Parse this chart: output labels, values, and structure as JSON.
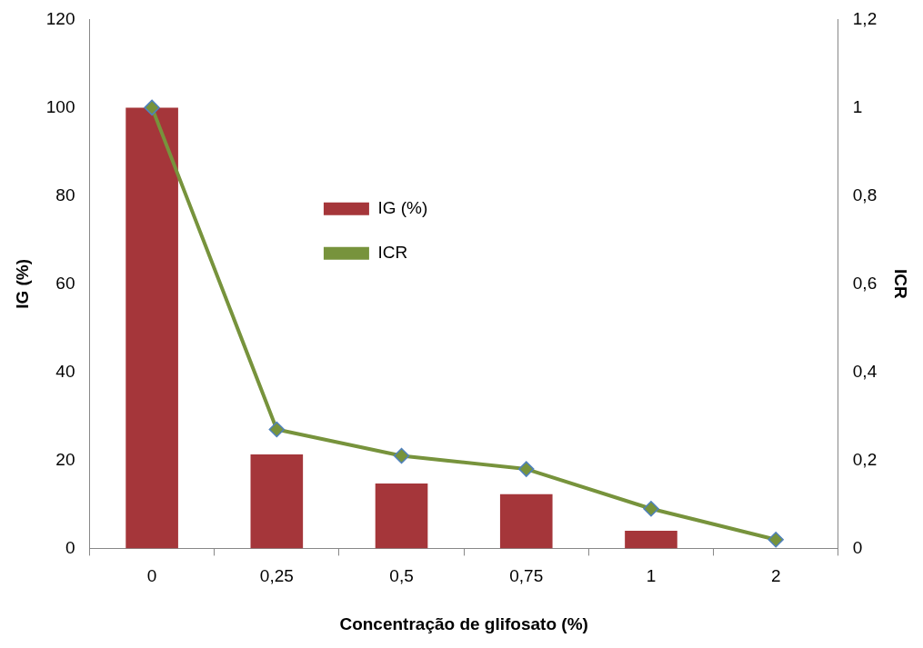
{
  "chart_data": {
    "type": "bar",
    "xlabel": "Concentração de glifosato (%)",
    "ylabel": "IG (%)",
    "y2label": "ICR",
    "categories": [
      "0",
      "0,25",
      "0,5",
      "0,75",
      "1",
      "2"
    ],
    "series": [
      {
        "name": "IG (%)",
        "color": "#a5363a",
        "values": [
          100,
          21.3,
          14.7,
          12.3,
          4.0,
          0
        ]
      },
      {
        "name": "ICR",
        "type": "line",
        "axis": "y2",
        "color": "#77933c",
        "values": [
          1,
          0.27,
          0.21,
          0.18,
          0.09,
          0.02
        ]
      }
    ],
    "ylim": [
      0,
      120
    ],
    "yticks": [
      0,
      20,
      40,
      60,
      80,
      100,
      120
    ],
    "y2lim": [
      0,
      1.2
    ],
    "y2ticks": [
      0,
      {
        "value": 0.2,
        "label": "0,2"
      },
      {
        "value": 0.4,
        "label": "0,4"
      },
      {
        "value": 0.6,
        "label": "0,6"
      },
      {
        "value": 0.8,
        "label": "0,8"
      },
      1,
      {
        "value": 1.2,
        "label": "1,2"
      }
    ],
    "grid": false,
    "legend": "top",
    "marker": "diamond",
    "line_style": "solid"
  }
}
